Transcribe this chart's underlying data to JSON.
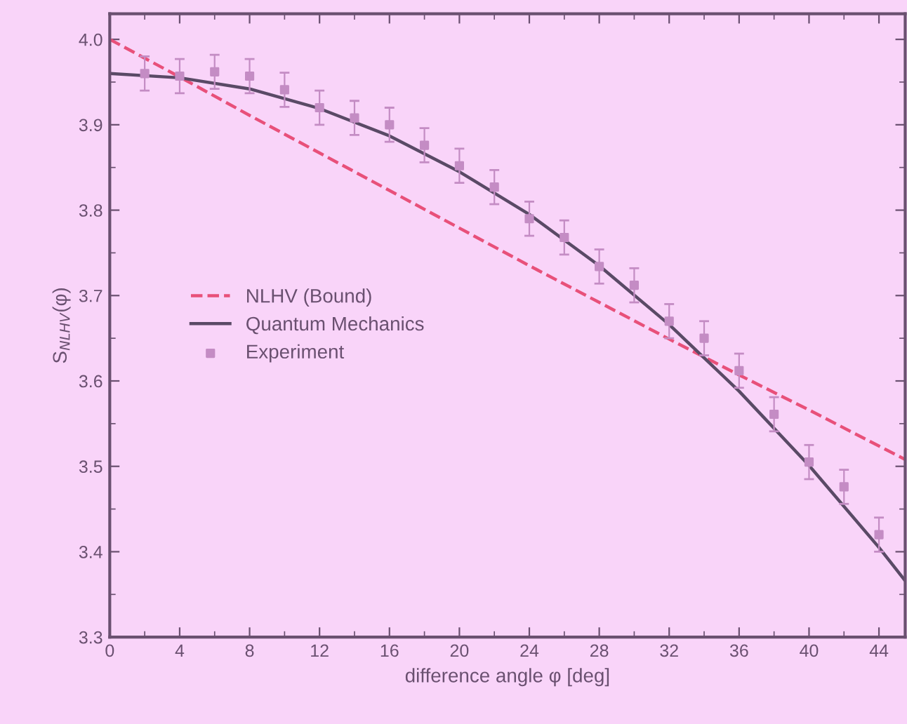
{
  "chart_data": {
    "type": "line",
    "xlabel": "difference angle φ [deg]",
    "ylabel": "S$_{NLHV}$(φ)",
    "xlim": [
      0,
      45.5
    ],
    "xticks": [
      0,
      4,
      8,
      12,
      16,
      20,
      24,
      28,
      32,
      36,
      40,
      44
    ],
    "ylim": [
      3.3,
      4.03
    ],
    "yticks": [
      {
        "value": 3.3,
        "label": "3.3"
      },
      {
        "value": 3.4,
        "label": "3.4"
      },
      {
        "value": 3.5,
        "label": "3.5"
      },
      {
        "value": 3.6,
        "label": "3.6"
      },
      {
        "value": 3.7,
        "label": "3.7"
      },
      {
        "value": 3.8,
        "label": "3.8"
      },
      {
        "value": 3.9,
        "label": "3.9"
      },
      {
        "value": 4.0,
        "label": "4.0"
      }
    ],
    "grid": false,
    "legend": "left",
    "series": [
      {
        "name": "NLHV (Bound)",
        "color": "#e8507a",
        "line_style": "dashed",
        "marker": "none",
        "x": [
          0,
          4,
          8,
          12,
          16,
          20,
          24,
          28,
          32,
          36,
          40,
          45.5
        ],
        "values": [
          4.0,
          3.956,
          3.911,
          3.867,
          3.823,
          3.779,
          3.735,
          3.692,
          3.649,
          3.607,
          3.566,
          3.508
        ]
      },
      {
        "name": "Quantum Mechanics",
        "color": "#5a4a66",
        "line_style": "solid",
        "marker": "none",
        "x": [
          0,
          4,
          8,
          12,
          16,
          20,
          24,
          28,
          32,
          36,
          40,
          44,
          45.5
        ],
        "values": [
          3.96,
          3.955,
          3.942,
          3.919,
          3.887,
          3.845,
          3.795,
          3.735,
          3.666,
          3.588,
          3.501,
          3.405,
          3.366
        ]
      },
      {
        "name": "Experiment",
        "type": "scatter",
        "color": "#c48cc4",
        "marker": "square",
        "x": [
          2,
          4,
          6,
          8,
          10,
          12,
          14,
          16,
          18,
          20,
          22,
          24,
          26,
          28,
          30,
          32,
          34,
          36,
          38,
          40,
          42,
          44
        ],
        "values": [
          3.96,
          3.957,
          3.962,
          3.957,
          3.941,
          3.92,
          3.908,
          3.9,
          3.876,
          3.852,
          3.827,
          3.79,
          3.768,
          3.734,
          3.712,
          3.67,
          3.65,
          3.612,
          3.561,
          3.505,
          3.476,
          3.42
        ],
        "errors": [
          0.02,
          0.02,
          0.02,
          0.02,
          0.02,
          0.02,
          0.02,
          0.02,
          0.02,
          0.02,
          0.02,
          0.02,
          0.02,
          0.02,
          0.02,
          0.02,
          0.02,
          0.02,
          0.02,
          0.02,
          0.02,
          0.02
        ]
      }
    ]
  }
}
